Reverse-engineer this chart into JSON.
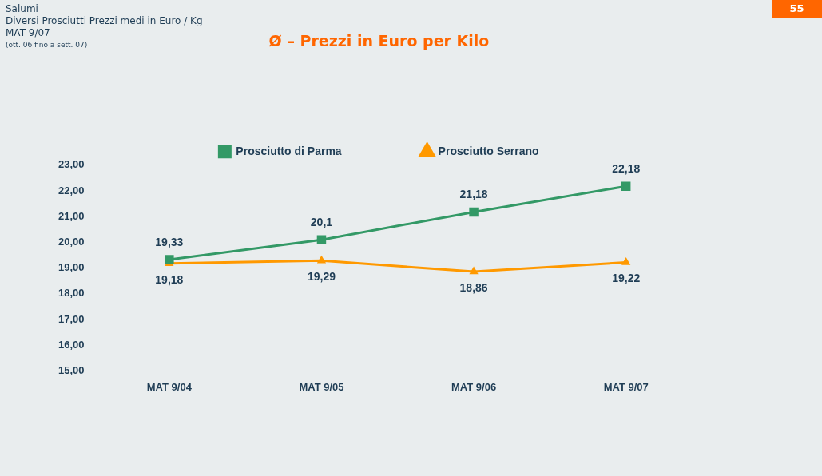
{
  "chart_data": {
    "type": "line",
    "title": "Ø – Prezzi in Euro per Kilo",
    "categories": [
      "MAT 9/04",
      "MAT 9/05",
      "MAT 9/06",
      "MAT 9/07"
    ],
    "series": [
      {
        "name": "Prosciutto di Parma",
        "color": "#339966",
        "marker": "square",
        "values": [
          19.33,
          20.1,
          21.18,
          22.18
        ],
        "value_labels": [
          "19,33",
          "20,1",
          "21,18",
          "22,18"
        ]
      },
      {
        "name": "Prosciutto Serrano",
        "color": "#ff9900",
        "marker": "triangle",
        "values": [
          19.18,
          19.29,
          18.86,
          19.22
        ],
        "value_labels": [
          "19,18",
          "19,29",
          "18,86",
          "19,22"
        ]
      }
    ],
    "ylim": [
      15,
      23
    ],
    "yticks": [
      {
        "value": 15,
        "label": "15,00"
      },
      {
        "value": 16,
        "label": "16,00"
      },
      {
        "value": 17,
        "label": "17,00"
      },
      {
        "value": 18,
        "label": "18,00"
      },
      {
        "value": 19,
        "label": "19,00"
      },
      {
        "value": 20,
        "label": "20,00"
      },
      {
        "value": 21,
        "label": "21,00"
      },
      {
        "value": 22,
        "label": "22,00"
      },
      {
        "value": 23,
        "label": "23,00"
      }
    ],
    "grid": false,
    "legend": "top",
    "line_style": "solid",
    "annotations": [
      "Salumi",
      "Diversi Prosciutti  Prezzi medi in Euro / Kg",
      "MAT 9/07",
      "(ott. 06  fino a sett. 07)",
      "55"
    ]
  }
}
